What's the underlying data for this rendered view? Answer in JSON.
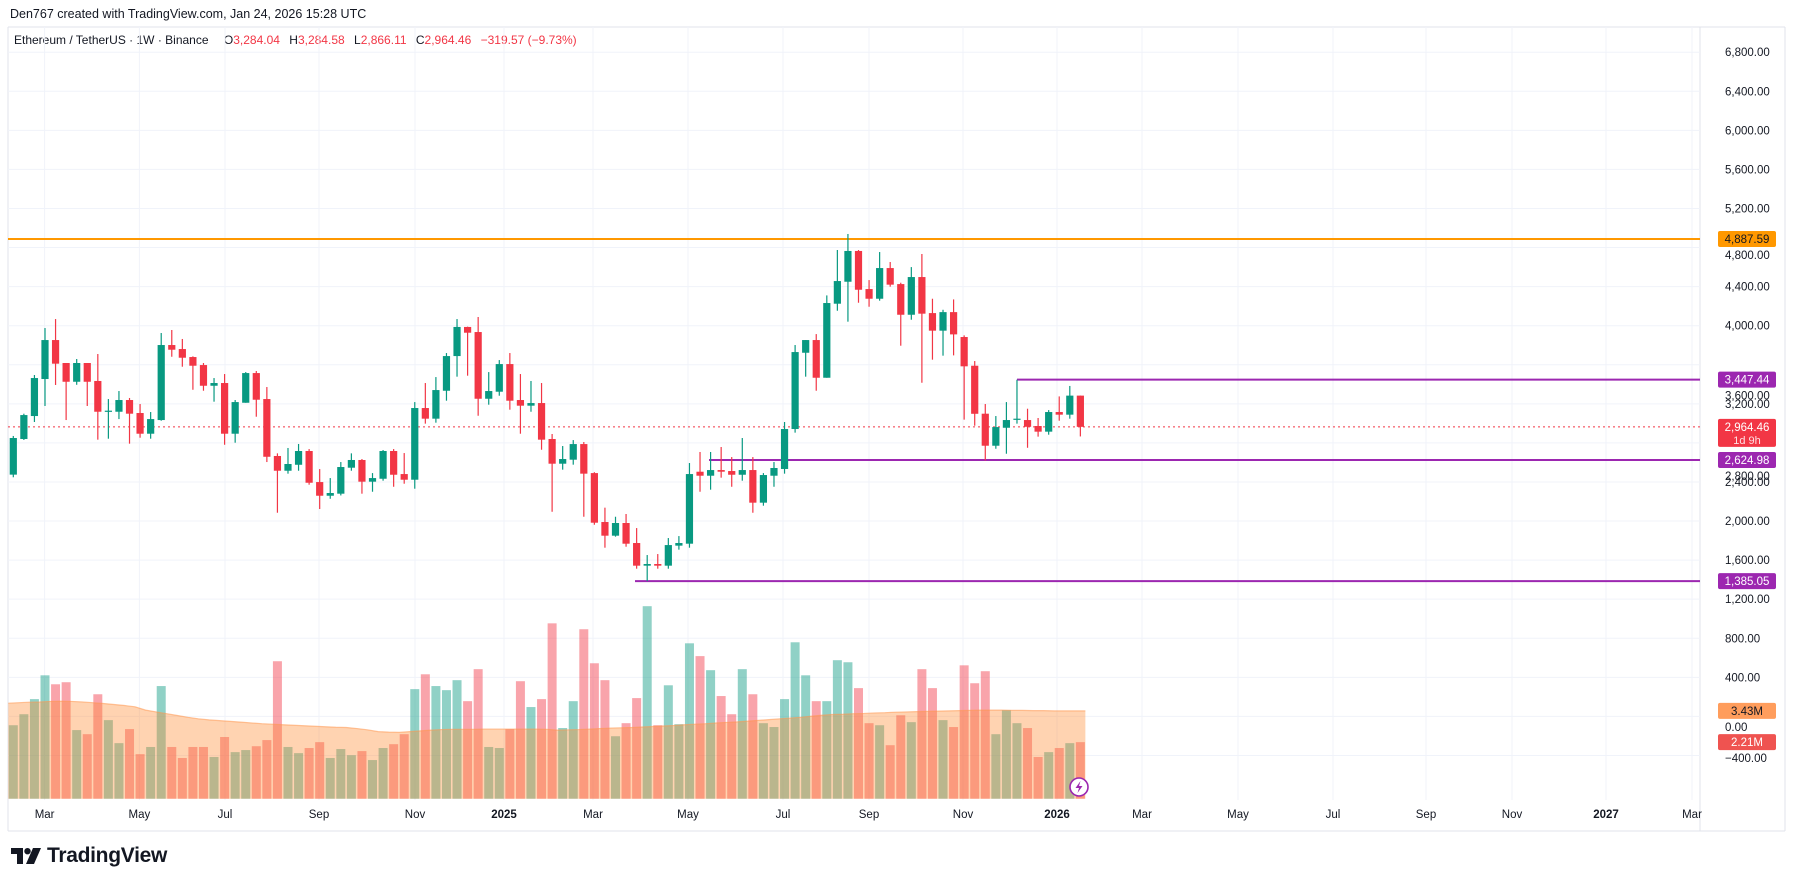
{
  "header": {
    "text": "Den767 created with TradingView.com, Jan 24, 2026 15:28 UTC"
  },
  "legend": {
    "symbol": "Ethereum / TetherUS · 1W · Binance",
    "open_label": "O",
    "open": "3,284.04",
    "high_label": "H",
    "high": "3,284.58",
    "low_label": "L",
    "low": "2,866.11",
    "close_label": "C",
    "close": "2,964.46",
    "change": "−319.57 (−9.73%)"
  },
  "logo": {
    "text": "TradingView"
  },
  "colors": {
    "up": "#089981",
    "down": "#f23645",
    "orange_line": "#ff9800",
    "purple_line": "#9c27b0",
    "volume_ma": "#ff9850"
  },
  "chart_data": {
    "type": "candlestick",
    "interval": "1W",
    "x_start": "2024-02-19",
    "ylim": [
      -400,
      6800
    ],
    "grid": true,
    "columns": [
      "open",
      "high",
      "low",
      "close",
      "volume_M"
    ],
    "candles": [
      [
        2475,
        2871,
        2448,
        2850,
        2.87
      ],
      [
        2840,
        3099,
        2830,
        3085,
        3.3
      ],
      [
        3075,
        3495,
        3014,
        3464,
        3.89
      ],
      [
        3454,
        3976,
        3178,
        3853,
        4.82
      ],
      [
        3853,
        4068,
        3393,
        3611,
        4.47
      ],
      [
        3618,
        3618,
        3034,
        3426,
        4.55
      ],
      [
        3426,
        3659,
        3395,
        3618,
        2.68
      ],
      [
        3618,
        3618,
        3178,
        3426,
        2.52
      ],
      [
        3434,
        3710,
        2833,
        3119,
        4.08
      ],
      [
        3120,
        3249,
        2843,
        3130,
        3.07
      ],
      [
        3119,
        3331,
        3044,
        3239,
        2.17
      ],
      [
        3239,
        3260,
        2792,
        3099,
        2.72
      ],
      [
        3106,
        3198,
        2853,
        2894,
        1.74
      ],
      [
        2894,
        3116,
        2843,
        3044,
        2.02
      ],
      [
        3034,
        3925,
        3027,
        3802,
        4.4
      ],
      [
        3802,
        3956,
        3682,
        3754,
        2.02
      ],
      [
        3761,
        3864,
        3580,
        3672,
        1.59
      ],
      [
        3679,
        3686,
        3344,
        3590,
        2.02
      ],
      [
        3597,
        3618,
        3334,
        3385,
        2.02
      ],
      [
        3385,
        3464,
        3222,
        3413,
        1.63
      ],
      [
        3413,
        3505,
        2781,
        2894,
        2.41
      ],
      [
        2894,
        3239,
        2802,
        3218,
        1.82
      ],
      [
        3211,
        3525,
        3211,
        3515,
        1.9
      ],
      [
        3515,
        3536,
        3068,
        3242,
        2.05
      ],
      [
        3249,
        3372,
        2604,
        2658,
        2.29
      ],
      [
        2666,
        2693,
        2085,
        2515,
        5.37
      ],
      [
        2515,
        2748,
        2485,
        2584,
        2.02
      ],
      [
        2576,
        2789,
        2515,
        2717,
        1.78
      ],
      [
        2717,
        2737,
        2372,
        2392,
        1.98
      ],
      [
        2399,
        2532,
        2123,
        2259,
        2.21
      ],
      [
        2259,
        2440,
        2228,
        2287,
        1.59
      ],
      [
        2280,
        2604,
        2262,
        2553,
        1.94
      ],
      [
        2546,
        2693,
        2515,
        2625,
        1.7
      ],
      [
        2625,
        2635,
        2280,
        2403,
        1.86
      ],
      [
        2403,
        2491,
        2300,
        2440,
        1.51
      ],
      [
        2433,
        2727,
        2413,
        2717,
        1.98
      ],
      [
        2717,
        2737,
        2351,
        2474,
        2.13
      ],
      [
        2481,
        2696,
        2382,
        2423,
        2.52
      ],
      [
        2423,
        3218,
        2331,
        3157,
        4.28
      ],
      [
        3157,
        3413,
        2997,
        3048,
        4.86
      ],
      [
        3048,
        3474,
        3007,
        3341,
        4.4
      ],
      [
        3334,
        3720,
        3232,
        3689,
        4.24
      ],
      [
        3689,
        4068,
        3478,
        3987,
        4.63
      ],
      [
        3987,
        3990,
        3488,
        3928,
        3.81
      ],
      [
        3935,
        4089,
        3078,
        3252,
        5.06
      ],
      [
        3252,
        3525,
        3191,
        3331,
        2.02
      ],
      [
        3324,
        3648,
        3283,
        3607,
        1.98
      ],
      [
        3607,
        3720,
        3140,
        3232,
        2.72
      ],
      [
        3239,
        3505,
        2894,
        3181,
        4.59
      ],
      [
        3181,
        3434,
        3119,
        3208,
        3.58
      ],
      [
        3208,
        3413,
        2730,
        2833,
        3.89
      ],
      [
        2840,
        2891,
        2095,
        2587,
        6.85
      ],
      [
        2587,
        2768,
        2526,
        2635,
        2.76
      ],
      [
        2628,
        2829,
        2577,
        2788,
        3.81
      ],
      [
        2788,
        2809,
        2044,
        2485,
        6.62
      ],
      [
        2491,
        2500,
        1962,
        1983,
        5.29
      ],
      [
        1990,
        2137,
        1727,
        1850,
        4.63
      ],
      [
        1850,
        2044,
        1840,
        1980,
        2.44
      ],
      [
        1980,
        2072,
        1737,
        1768,
        2.95
      ],
      [
        1775,
        1928,
        1512,
        1543,
        3.93
      ],
      [
        1543,
        1652,
        1385,
        1560,
        7.52
      ],
      [
        1560,
        1662,
        1512,
        1543,
        2.87
      ],
      [
        1543,
        1826,
        1512,
        1754,
        4.43
      ],
      [
        1748,
        1846,
        1707,
        1775,
        2.91
      ],
      [
        1768,
        2594,
        1727,
        2481,
        6.07
      ],
      [
        2505,
        2707,
        2300,
        2464,
        5.57
      ],
      [
        2464,
        2707,
        2321,
        2522,
        5.02
      ],
      [
        2522,
        2758,
        2444,
        2505,
        4.01
      ],
      [
        2512,
        2655,
        2351,
        2474,
        3.3
      ],
      [
        2474,
        2850,
        2413,
        2522,
        5.06
      ],
      [
        2522,
        2655,
        2085,
        2188,
        4.08
      ],
      [
        2188,
        2491,
        2157,
        2471,
        2.95
      ],
      [
        2464,
        2604,
        2351,
        2543,
        2.8
      ],
      [
        2533,
        3014,
        2485,
        2942,
        3.89
      ],
      [
        2942,
        3802,
        2905,
        3730,
        6.11
      ],
      [
        3723,
        3853,
        3478,
        3853,
        4.82
      ],
      [
        3853,
        3914,
        3334,
        3467,
        3.81
      ],
      [
        3467,
        4310,
        3467,
        4232,
        3.81
      ],
      [
        4225,
        4775,
        4153,
        4457,
        5.41
      ],
      [
        4450,
        4939,
        4041,
        4765,
        5.33
      ],
      [
        4765,
        4775,
        4235,
        4368,
        4.32
      ],
      [
        4375,
        4467,
        4194,
        4276,
        2.95
      ],
      [
        4276,
        4754,
        4256,
        4590,
        2.87
      ],
      [
        4590,
        4652,
        4399,
        4420,
        2.09
      ],
      [
        4426,
        4440,
        3795,
        4112,
        3.26
      ],
      [
        4112,
        4600,
        4061,
        4498,
        2.99
      ],
      [
        4498,
        4734,
        3416,
        4123,
        5.06
      ],
      [
        4129,
        4276,
        3652,
        3949,
        4.32
      ],
      [
        3949,
        4163,
        3693,
        4139,
        3.07
      ],
      [
        4139,
        4269,
        3696,
        3911,
        2.8
      ],
      [
        3884,
        3901,
        3038,
        3584,
        5.21
      ],
      [
        3590,
        3638,
        2976,
        3098,
        4.51
      ],
      [
        3099,
        3198,
        2620,
        2771,
        4.98
      ],
      [
        2771,
        3075,
        2740,
        2962,
        2.52
      ],
      [
        2955,
        3218,
        2689,
        3034,
        3.46
      ],
      [
        3037,
        3447,
        2997,
        3048,
        2.95
      ],
      [
        3034,
        3150,
        2750,
        2965,
        2.76
      ],
      [
        2973,
        3055,
        2864,
        2915,
        1.63
      ],
      [
        2915,
        3136,
        2884,
        3116,
        1.82
      ],
      [
        3116,
        3276,
        3027,
        3089,
        1.98
      ],
      [
        3089,
        3383,
        3048,
        3284,
        2.17
      ],
      [
        3284.04,
        3284.58,
        2866.11,
        2964.46,
        2.21
      ]
    ],
    "volume_ma": [
      3.73,
      3.75,
      3.77,
      3.78,
      3.8,
      3.81,
      3.8,
      3.78,
      3.75,
      3.72,
      3.68,
      3.64,
      3.59,
      3.46,
      3.39,
      3.32,
      3.25,
      3.18,
      3.12,
      3.08,
      3.05,
      3.02,
      2.99,
      2.96,
      2.93,
      2.91,
      2.89,
      2.87,
      2.85,
      2.83,
      2.81,
      2.79,
      2.78,
      2.74,
      2.69,
      2.62,
      2.6,
      2.59,
      2.62,
      2.65,
      2.68,
      2.7,
      2.71,
      2.71,
      2.71,
      2.72,
      2.72,
      2.72,
      2.72,
      2.72,
      2.72,
      2.71,
      2.68,
      2.69,
      2.7,
      2.72,
      2.74,
      2.76,
      2.77,
      2.78,
      2.8,
      2.82,
      2.84,
      2.86,
      2.89,
      2.91,
      2.93,
      2.96,
      2.98,
      3.0,
      3.03,
      3.06,
      3.09,
      3.12,
      3.15,
      3.18,
      3.22,
      3.26,
      3.29,
      3.3,
      3.32,
      3.33,
      3.35,
      3.36,
      3.38,
      3.39,
      3.4,
      3.41,
      3.42,
      3.43,
      3.44,
      3.45,
      3.46,
      3.46,
      3.46,
      3.45,
      3.45,
      3.44,
      3.44,
      3.43,
      3.43,
      3.43
    ],
    "y_ticks": [
      "6,800.00",
      "6,400.00",
      "6,000.00",
      "5,600.00",
      "5,200.00",
      "4,800.00",
      "4,400.00",
      "4,000.00",
      "3,600.00",
      "3,200.00",
      "2,800.00",
      "2,400.00",
      "2,000.00",
      "1,600.00",
      "1,200.00",
      "800.00",
      "400.00",
      "0.00",
      "−400.00"
    ],
    "y_tick_values": [
      6800,
      6400,
      6000,
      5600,
      5200,
      4800,
      4400,
      4000,
      3600,
      3200,
      2800,
      2400,
      2000,
      1600,
      1200,
      800,
      400,
      0,
      -400
    ],
    "x_ticks": [
      "Mar",
      "May",
      "Jul",
      "Sep",
      "Nov",
      "2025",
      "Mar",
      "May",
      "Jul",
      "Sep",
      "Nov",
      "2026",
      "Mar",
      "May",
      "Jul",
      "Sep",
      "Nov",
      "2027",
      "Mar"
    ],
    "horizontal_lines": [
      {
        "price": 4887.59,
        "label": "4,887.59",
        "color": "#ff9800"
      },
      {
        "price": 3447.44,
        "label": "3,447.44",
        "color": "#9c27b0"
      },
      {
        "price": 2624.98,
        "label": "2,624.98",
        "color": "#9c27b0"
      },
      {
        "price": 1385.05,
        "label": "1,385.05",
        "color": "#9c27b0"
      }
    ],
    "last_price": {
      "price": 2964.46,
      "label": "2,964.46",
      "countdown": "1d 9h",
      "color": "#f23645"
    },
    "volume_labels": {
      "ma": "3.43M",
      "volume": "2.21M"
    }
  }
}
